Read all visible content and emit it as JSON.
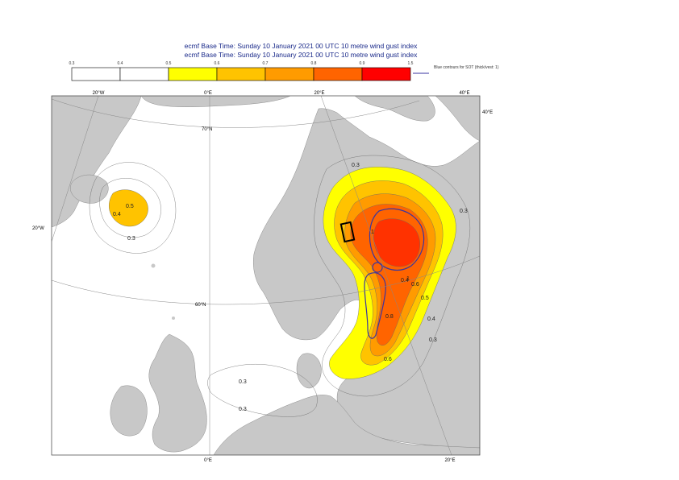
{
  "title": {
    "line1": "ecmf  Base Time: Sunday 10 January 2021 00 UTC 10 metre wind gust index",
    "line2": "ecmf  Base Time: Sunday 10 January 2021 00 UTC 10 metre wind gust index"
  },
  "legend": {
    "ticks": [
      "0.3",
      "0.4",
      "0.5",
      "0.6",
      "0.7",
      "0.8",
      "0.9",
      "1.5"
    ],
    "colors": [
      "#ffffff",
      "#ffffff",
      "#ffff00",
      "#ffc300",
      "#ff9b00",
      "#ff6400",
      "#ff3200",
      "#ff0000"
    ],
    "note": "Blue contours for SOT (thick/vest: 1)"
  },
  "map": {
    "lon_labels": {
      "top_20w": "20°W",
      "top_0": "0°E",
      "top_20e": "20°E",
      "top_40e": "40°E",
      "right_40e": "40°E",
      "bottom_0": "0°E",
      "bottom_20e": "20°E",
      "left_20w": "20°W"
    },
    "lat_labels": {
      "lat70": "70°N",
      "lat60": "60°N"
    },
    "contour_labels": [
      "0.5",
      "0.4",
      "0.3",
      "0.3",
      "0.3",
      "0.3",
      "0.4",
      "0.3",
      "0.5",
      "0.6",
      "0.6",
      "0.8",
      "0.3",
      "1",
      "1",
      "0.4"
    ],
    "colors": {
      "land": "#c8c8c8",
      "sea": "#ffffff",
      "sot": "#3a36a0"
    }
  }
}
